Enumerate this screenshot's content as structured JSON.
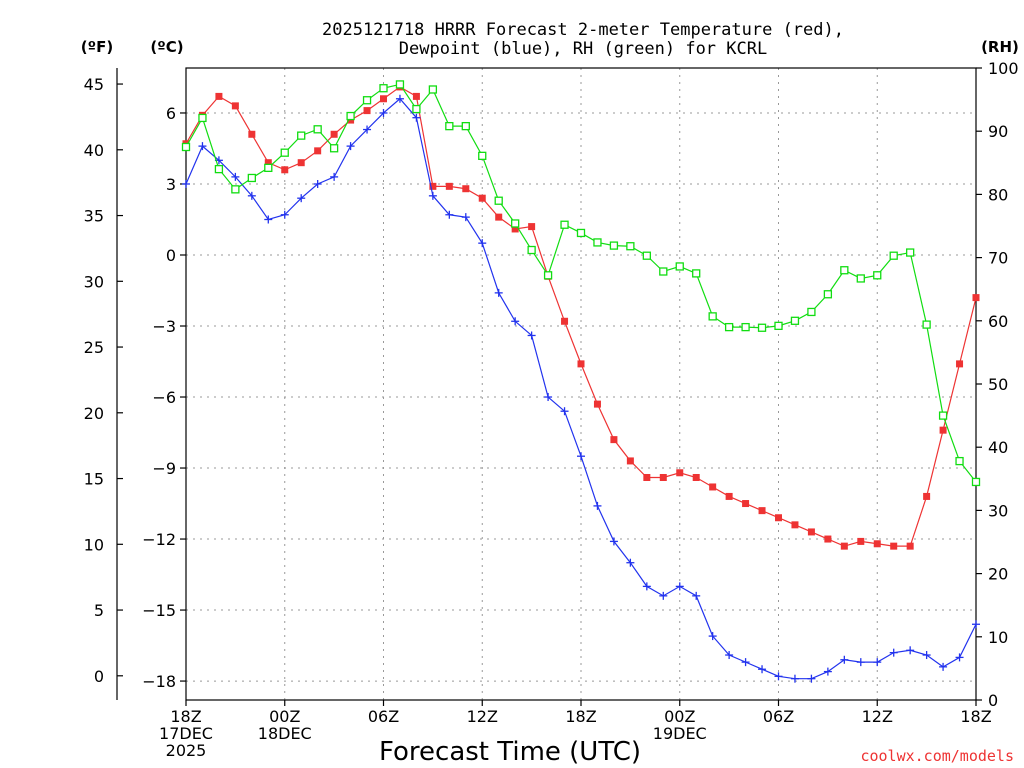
{
  "chart_data": {
    "type": "line",
    "title_line1": "2025121718 HRRR Forecast 2-meter Temperature (red),",
    "title_line2": "Dewpoint (blue), RH (green) for KCRL",
    "xlabel": "Forecast Time (UTC)",
    "watermark": "coolwx.com/models",
    "left_axis_f_label": "(ºF)",
    "left_axis_c_label": "(ºC)",
    "right_axis_label": "(RH)",
    "ylim_c": [
      -18.8,
      7.9
    ],
    "ylim_rh": [
      0,
      100
    ],
    "xlim_hours": [
      0,
      48
    ],
    "f_ticks": [
      0,
      5,
      10,
      15,
      20,
      25,
      30,
      35,
      40,
      45
    ],
    "c_ticks": [
      "6",
      "3",
      "0",
      "−3",
      "−6",
      "−9",
      "−12",
      "−15",
      "−18"
    ],
    "c_tick_values": [
      6,
      3,
      0,
      -3,
      -6,
      -9,
      -12,
      -15,
      -18
    ],
    "rh_ticks": [
      0,
      10,
      20,
      30,
      40,
      50,
      60,
      70,
      80,
      90,
      100
    ],
    "x_ticks": [
      {
        "hour": 0,
        "lines": [
          "18Z",
          "17DEC",
          "2025"
        ]
      },
      {
        "hour": 6,
        "lines": [
          "00Z",
          "18DEC"
        ]
      },
      {
        "hour": 12,
        "lines": [
          "06Z"
        ]
      },
      {
        "hour": 18,
        "lines": [
          "12Z"
        ]
      },
      {
        "hour": 24,
        "lines": [
          "18Z"
        ]
      },
      {
        "hour": 30,
        "lines": [
          "00Z",
          "19DEC"
        ]
      },
      {
        "hour": 36,
        "lines": [
          "06Z"
        ]
      },
      {
        "hour": 42,
        "lines": [
          "12Z"
        ]
      },
      {
        "hour": 48,
        "lines": [
          "18Z"
        ]
      }
    ],
    "series": [
      {
        "name": "2-meter Temperature (°C)",
        "color": "#ee3333",
        "marker": "filled-square",
        "axis": "celsius",
        "x": [
          0,
          1,
          2,
          3,
          4,
          5,
          6,
          7,
          8,
          9,
          10,
          11,
          12,
          13,
          14,
          15,
          16,
          17,
          18,
          19,
          20,
          21,
          22,
          23,
          24,
          25,
          26,
          27,
          28,
          29,
          30,
          31,
          32,
          33,
          34,
          35,
          36,
          37,
          38,
          39,
          40,
          41,
          42,
          43,
          44,
          45,
          46,
          47,
          48
        ],
        "values": [
          4.7,
          5.9,
          6.7,
          6.3,
          5.1,
          3.9,
          3.6,
          3.9,
          4.4,
          5.1,
          5.7,
          6.1,
          6.6,
          7.1,
          6.7,
          2.9,
          2.9,
          2.8,
          2.4,
          1.6,
          1.1,
          1.2,
          -0.9,
          -2.8,
          -4.6,
          -6.3,
          -7.8,
          -8.7,
          -9.4,
          -9.4,
          -9.2,
          -9.4,
          -9.8,
          -10.2,
          -10.5,
          -10.8,
          -11.1,
          -11.4,
          -11.7,
          -12.0,
          -12.3,
          -12.1,
          -12.2,
          -12.3,
          -12.3,
          -10.2,
          -7.4,
          -4.6,
          -1.8
        ]
      },
      {
        "name": "Dewpoint (°C)",
        "color": "#2233ee",
        "marker": "plus",
        "axis": "celsius",
        "x": [
          0,
          1,
          2,
          3,
          4,
          5,
          6,
          7,
          8,
          9,
          10,
          11,
          12,
          13,
          14,
          15,
          16,
          17,
          18,
          19,
          20,
          21,
          22,
          23,
          24,
          25,
          26,
          27,
          28,
          29,
          30,
          31,
          32,
          33,
          34,
          35,
          36,
          37,
          38,
          39,
          40,
          41,
          42,
          43,
          44,
          45,
          46,
          47,
          48
        ],
        "values": [
          3.0,
          4.6,
          4.0,
          3.3,
          2.5,
          1.5,
          1.7,
          2.4,
          3.0,
          3.3,
          4.6,
          5.3,
          6.0,
          6.6,
          5.8,
          2.5,
          1.7,
          1.6,
          0.5,
          -1.6,
          -2.8,
          -3.4,
          -6.0,
          -6.6,
          -8.5,
          -10.6,
          -12.1,
          -13.0,
          -14.0,
          -14.4,
          -14.0,
          -14.4,
          -16.1,
          -16.9,
          -17.2,
          -17.5,
          -17.8,
          -17.9,
          -17.9,
          -17.6,
          -17.1,
          -17.2,
          -17.2,
          -16.8,
          -16.7,
          -16.9,
          -17.4,
          -17.0,
          -15.6
        ]
      },
      {
        "name": "RH (%)",
        "color": "#11dd11",
        "marker": "open-square",
        "axis": "rh",
        "x": [
          0,
          1,
          2,
          3,
          4,
          5,
          6,
          7,
          8,
          9,
          10,
          11,
          12,
          13,
          14,
          15,
          16,
          17,
          18,
          19,
          20,
          21,
          22,
          23,
          24,
          25,
          26,
          27,
          28,
          29,
          30,
          31,
          32,
          33,
          34,
          35,
          36,
          37,
          38,
          39,
          40,
          41,
          42,
          43,
          44,
          45,
          46,
          47,
          48
        ],
        "values": [
          87.5,
          92.1,
          84.0,
          80.8,
          82.6,
          84.2,
          86.6,
          89.3,
          90.3,
          87.3,
          92.4,
          94.9,
          96.8,
          97.4,
          93.5,
          96.6,
          90.8,
          90.8,
          86.1,
          79.0,
          75.4,
          71.2,
          67.2,
          75.2,
          73.9,
          72.4,
          71.9,
          71.8,
          70.3,
          67.8,
          68.6,
          67.5,
          60.7,
          59.0,
          59.0,
          58.9,
          59.2,
          60.0,
          61.4,
          64.2,
          68.0,
          66.7,
          67.2,
          70.3,
          70.8,
          59.4,
          45.0,
          37.8,
          34.5
        ]
      }
    ]
  }
}
